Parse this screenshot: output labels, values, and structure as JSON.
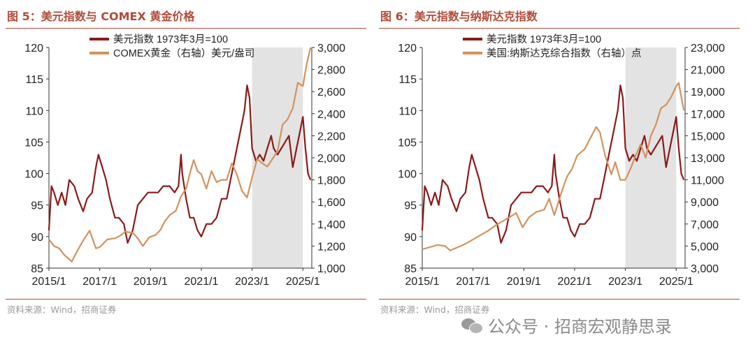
{
  "panels": {
    "left": {
      "title": "图 5：美元指数与 COMEX 黄金价格",
      "source": "资料来源：Wind，招商证券"
    },
    "right": {
      "title": "图 6：美元指数与纳斯达克指数",
      "source": "资料来源：Wind，招商证券"
    }
  },
  "watermark": "公众号 · 招商宏观静思录",
  "chart_data": [
    {
      "type": "line",
      "title": "图 5：美元指数与 COMEX 黄金价格",
      "x_ticks": [
        "2015/1",
        "2017/1",
        "2019/1",
        "2021/1",
        "2023/1",
        "2025/1"
      ],
      "x_range": [
        2015.0,
        2025.35
      ],
      "ylim": [
        85,
        120
      ],
      "y_ticks": [
        85,
        90,
        95,
        100,
        105,
        110,
        115,
        120
      ],
      "y2lim": [
        1000,
        3000
      ],
      "y2_ticks": [
        "1,000",
        "1,200",
        "1,400",
        "1,600",
        "1,800",
        "2,000",
        "2,200",
        "2,400",
        "2,600",
        "2,800",
        "3,000"
      ],
      "shaded_range": [
        2023.0,
        2025.0
      ],
      "legend": "top",
      "grid": false,
      "series": [
        {
          "name": "美元指数 1973年3月=100",
          "axis": "left",
          "color": "#8b1a1a",
          "x": [
            2015.0,
            2015.1,
            2015.2,
            2015.35,
            2015.5,
            2015.65,
            2015.8,
            2016.0,
            2016.15,
            2016.35,
            2016.5,
            2016.7,
            2016.85,
            2016.95,
            2017.1,
            2017.25,
            2017.4,
            2017.6,
            2017.75,
            2017.95,
            2018.1,
            2018.3,
            2018.5,
            2018.7,
            2018.9,
            2019.1,
            2019.3,
            2019.5,
            2019.75,
            2019.95,
            2020.1,
            2020.2,
            2020.25,
            2020.4,
            2020.55,
            2020.7,
            2020.85,
            2021.0,
            2021.2,
            2021.4,
            2021.6,
            2021.8,
            2022.0,
            2022.2,
            2022.4,
            2022.55,
            2022.7,
            2022.8,
            2022.9,
            2023.0,
            2023.15,
            2023.3,
            2023.45,
            2023.6,
            2023.75,
            2023.85,
            2024.0,
            2024.15,
            2024.3,
            2024.45,
            2024.6,
            2024.75,
            2024.9,
            2025.0,
            2025.1,
            2025.2,
            2025.3
          ],
          "y": [
            91,
            98,
            97,
            95,
            97,
            95,
            99,
            98,
            96,
            94,
            96,
            97,
            101,
            103,
            101,
            99,
            96,
            93,
            93,
            92,
            89,
            91,
            95,
            96,
            97,
            97,
            97,
            98,
            98,
            97,
            98,
            103,
            100,
            96,
            93,
            93,
            91,
            90,
            92,
            92,
            93,
            96,
            96,
            100,
            104,
            107,
            110,
            114,
            112,
            104,
            102,
            103,
            102,
            104,
            106,
            104,
            103,
            104,
            105,
            106,
            101,
            104,
            107,
            109,
            104,
            100,
            99
          ]
        },
        {
          "name": "COMEX黄金（右轴）美元/盎司",
          "axis": "right",
          "color": "#d4925c",
          "x": [
            2015.0,
            2015.2,
            2015.4,
            2015.6,
            2015.9,
            2016.1,
            2016.35,
            2016.6,
            2016.85,
            2017.0,
            2017.3,
            2017.6,
            2017.85,
            2018.0,
            2018.3,
            2018.5,
            2018.7,
            2018.95,
            2019.2,
            2019.4,
            2019.55,
            2019.75,
            2020.0,
            2020.2,
            2020.4,
            2020.6,
            2020.7,
            2020.85,
            2021.0,
            2021.2,
            2021.4,
            2021.6,
            2021.8,
            2022.0,
            2022.2,
            2022.4,
            2022.6,
            2022.8,
            2023.0,
            2023.2,
            2023.4,
            2023.6,
            2023.8,
            2024.0,
            2024.2,
            2024.4,
            2024.6,
            2024.8,
            2025.0,
            2025.15,
            2025.3
          ],
          "y": [
            1260,
            1200,
            1180,
            1120,
            1060,
            1150,
            1250,
            1340,
            1180,
            1190,
            1260,
            1270,
            1300,
            1330,
            1320,
            1270,
            1200,
            1280,
            1300,
            1350,
            1420,
            1480,
            1520,
            1650,
            1720,
            1900,
            1980,
            1880,
            1850,
            1720,
            1880,
            1780,
            1800,
            1800,
            1950,
            1850,
            1700,
            1640,
            1820,
            1990,
            1950,
            1920,
            1990,
            2060,
            2300,
            2350,
            2450,
            2680,
            2650,
            2850,
            3000
          ]
        }
      ]
    },
    {
      "type": "line",
      "title": "图 6：美元指数与纳斯达克指数",
      "x_ticks": [
        "2015/1",
        "2017/1",
        "2019/1",
        "2021/1",
        "2023/1",
        "2025/1"
      ],
      "x_range": [
        2015.0,
        2025.35
      ],
      "ylim": [
        85,
        120
      ],
      "y_ticks": [
        85,
        90,
        95,
        100,
        105,
        110,
        115,
        120
      ],
      "y2lim": [
        3000,
        23000
      ],
      "y2_ticks": [
        "3,000",
        "5,000",
        "7,000",
        "9,000",
        "11,000",
        "13,000",
        "15,000",
        "17,000",
        "19,000",
        "21,000",
        "23,000"
      ],
      "shaded_range": [
        2023.0,
        2025.0
      ],
      "legend": "top",
      "grid": false,
      "series": [
        {
          "name": "美元指数 1973年3月=100",
          "axis": "left",
          "color": "#8b1a1a",
          "x": [
            2015.0,
            2015.1,
            2015.2,
            2015.35,
            2015.5,
            2015.65,
            2015.8,
            2016.0,
            2016.15,
            2016.35,
            2016.5,
            2016.7,
            2016.85,
            2016.95,
            2017.1,
            2017.25,
            2017.4,
            2017.6,
            2017.75,
            2017.95,
            2018.1,
            2018.3,
            2018.5,
            2018.7,
            2018.9,
            2019.1,
            2019.3,
            2019.5,
            2019.75,
            2019.95,
            2020.1,
            2020.2,
            2020.25,
            2020.4,
            2020.55,
            2020.7,
            2020.85,
            2021.0,
            2021.2,
            2021.4,
            2021.6,
            2021.8,
            2022.0,
            2022.2,
            2022.4,
            2022.55,
            2022.7,
            2022.8,
            2022.9,
            2023.0,
            2023.15,
            2023.3,
            2023.45,
            2023.6,
            2023.75,
            2023.85,
            2024.0,
            2024.15,
            2024.3,
            2024.45,
            2024.6,
            2024.75,
            2024.9,
            2025.0,
            2025.1,
            2025.2,
            2025.3
          ],
          "y": [
            91,
            98,
            97,
            95,
            97,
            95,
            99,
            98,
            96,
            94,
            96,
            97,
            101,
            103,
            101,
            99,
            96,
            93,
            93,
            92,
            89,
            91,
            95,
            96,
            97,
            97,
            97,
            98,
            98,
            97,
            98,
            103,
            100,
            96,
            93,
            93,
            91,
            90,
            92,
            92,
            93,
            96,
            96,
            100,
            104,
            107,
            110,
            114,
            112,
            104,
            102,
            103,
            102,
            104,
            106,
            104,
            103,
            104,
            105,
            106,
            101,
            104,
            107,
            109,
            104,
            100,
            99
          ]
        },
        {
          "name": "美国:纳斯达克综合指数（右轴）点",
          "axis": "right",
          "color": "#d4925c",
          "x": [
            2015.0,
            2015.3,
            2015.6,
            2015.9,
            2016.1,
            2016.4,
            2016.7,
            2017.0,
            2017.3,
            2017.6,
            2017.9,
            2018.2,
            2018.5,
            2018.7,
            2018.95,
            2019.2,
            2019.5,
            2019.8,
            2020.0,
            2020.2,
            2020.3,
            2020.5,
            2020.7,
            2020.9,
            2021.1,
            2021.4,
            2021.6,
            2021.85,
            2022.0,
            2022.2,
            2022.45,
            2022.6,
            2022.8,
            2023.0,
            2023.2,
            2023.4,
            2023.6,
            2023.8,
            2024.0,
            2024.2,
            2024.4,
            2024.6,
            2024.8,
            2025.0,
            2025.1,
            2025.2,
            2025.3
          ],
          "y": [
            4700,
            4900,
            5100,
            5000,
            4600,
            4900,
            5200,
            5600,
            6000,
            6400,
            6900,
            7300,
            7700,
            8000,
            6700,
            7600,
            8100,
            8300,
            9300,
            7800,
            8500,
            10000,
            11300,
            12000,
            13200,
            13800,
            14700,
            15800,
            15300,
            13200,
            11500,
            12600,
            11000,
            11000,
            12000,
            13200,
            14200,
            13000,
            15000,
            16000,
            17500,
            17800,
            18500,
            19500,
            19800,
            18500,
            17300
          ]
        }
      ]
    }
  ]
}
